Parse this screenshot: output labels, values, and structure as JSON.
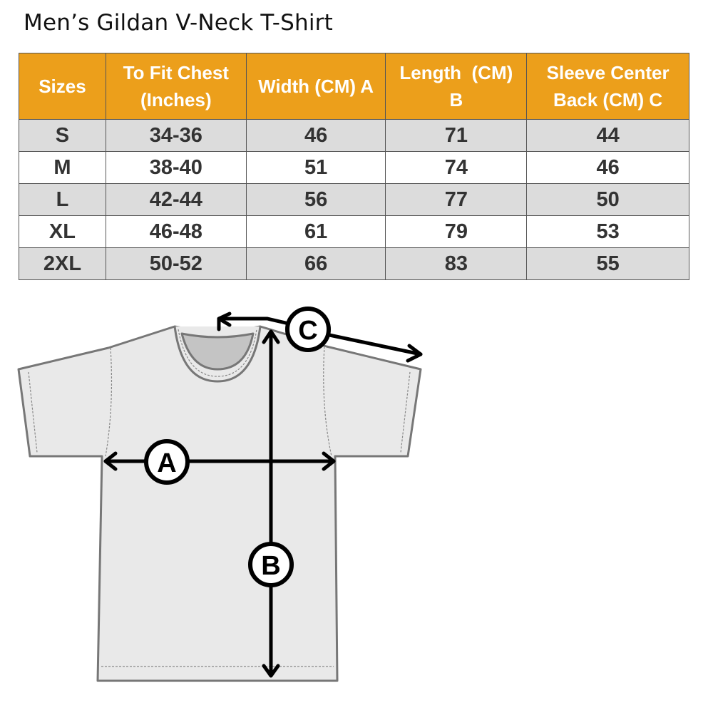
{
  "title": "Men’s Gildan V-Neck T-Shirt",
  "colors": {
    "header_bg": "#ec9f1b",
    "header_text": "#ffffff",
    "row_alt": "#dcdcdc",
    "shirt": "#e8e8e8"
  },
  "table": {
    "headers": [
      "Sizes",
      "To Fit Chest (Inches)",
      "Width (CM) A",
      "Length  (CM) B",
      "Sleeve Center Back (CM) C"
    ],
    "rows": [
      [
        "S",
        "34-36",
        "46",
        "71",
        "44"
      ],
      [
        "M",
        "38-40",
        "51",
        "74",
        "46"
      ],
      [
        "L",
        "42-44",
        "56",
        "77",
        "50"
      ],
      [
        "XL",
        "46-48",
        "61",
        "79",
        "53"
      ],
      [
        "2XL",
        "50-52",
        "66",
        "83",
        "55"
      ]
    ]
  },
  "diagram": {
    "label_a": "A",
    "label_b": "B",
    "label_c": "C"
  }
}
